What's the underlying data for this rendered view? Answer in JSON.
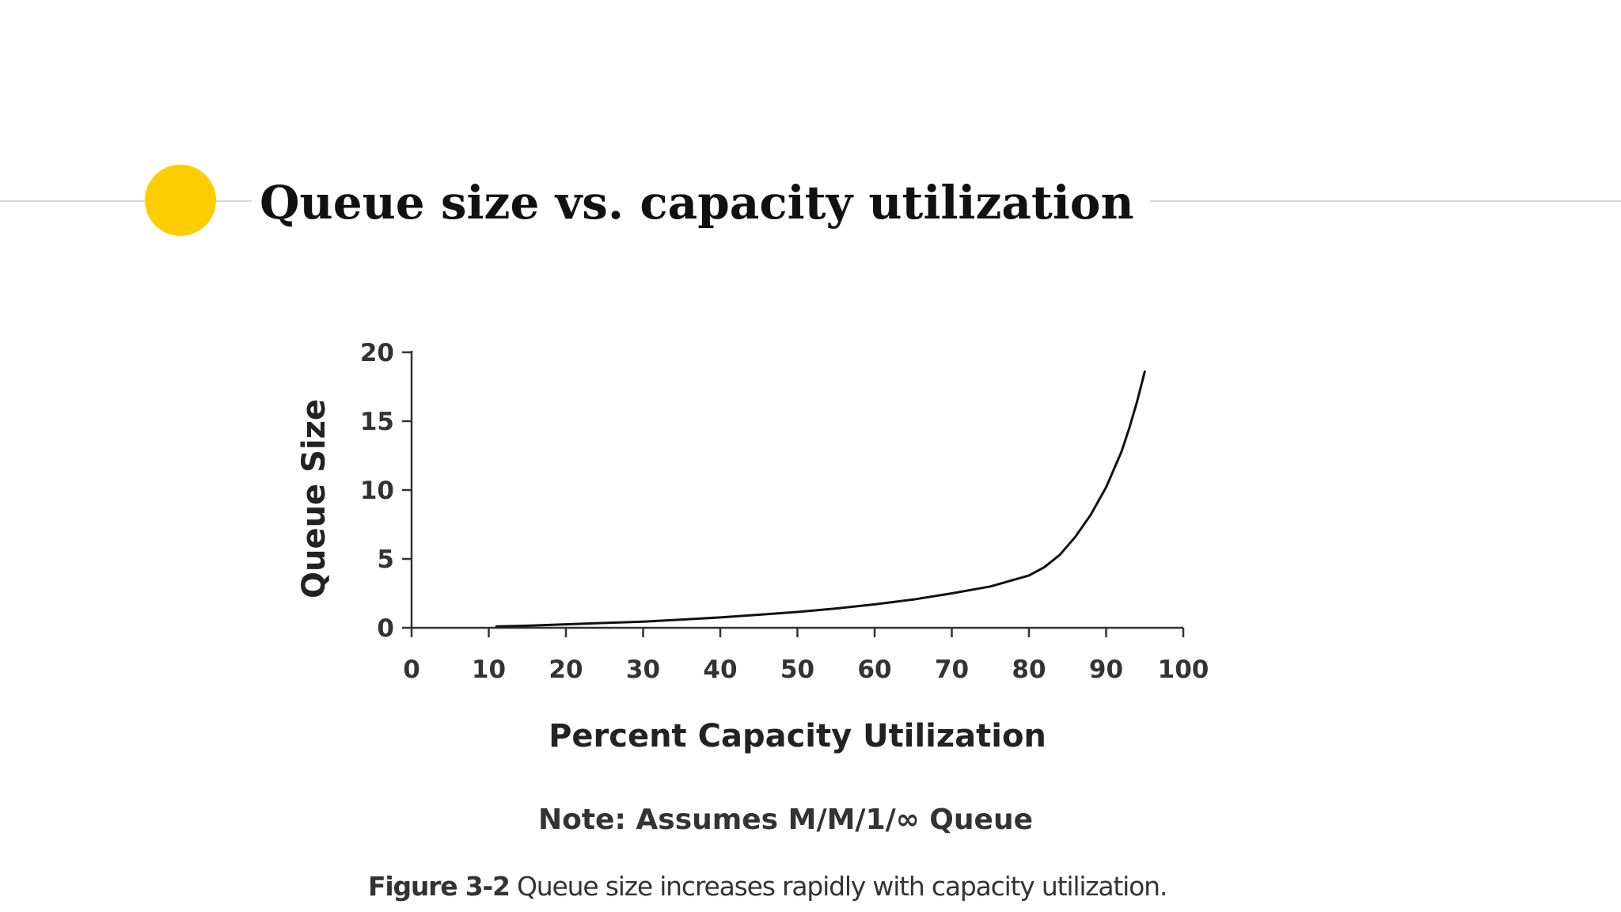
{
  "slide": {
    "title": "Queue size vs. capacity utilization",
    "accent_color": "#ffcc00",
    "rule_color": "#d6d6d6"
  },
  "figure": {
    "note": "Note: Assumes M/M/1/∞ Queue",
    "caption_number": "Figure 3-2",
    "caption_text": "Queue size increases rapidly with capacity utilization."
  },
  "chart_data": {
    "type": "line",
    "title": "",
    "xlabel": "Percent Capacity Utilization",
    "ylabel": "Queue Size",
    "xlim": [
      0,
      100
    ],
    "ylim": [
      0,
      20
    ],
    "x_ticks": [
      0,
      10,
      20,
      30,
      40,
      50,
      60,
      70,
      80,
      90,
      100
    ],
    "y_ticks": [
      0,
      5,
      10,
      15,
      20
    ],
    "grid": false,
    "legend": "none",
    "line_color": "#111111",
    "series": [
      {
        "name": "",
        "x": [
          11,
          15,
          20,
          25,
          30,
          35,
          40,
          45,
          50,
          55,
          60,
          65,
          70,
          75,
          80,
          82,
          84,
          86,
          88,
          90,
          92,
          93,
          94,
          95
        ],
        "y": [
          0.1,
          0.15,
          0.25,
          0.35,
          0.45,
          0.6,
          0.75,
          0.95,
          1.15,
          1.4,
          1.7,
          2.05,
          2.5,
          3.0,
          3.8,
          4.4,
          5.3,
          6.6,
          8.2,
          10.2,
          12.8,
          14.5,
          16.4,
          18.6
        ]
      }
    ]
  }
}
